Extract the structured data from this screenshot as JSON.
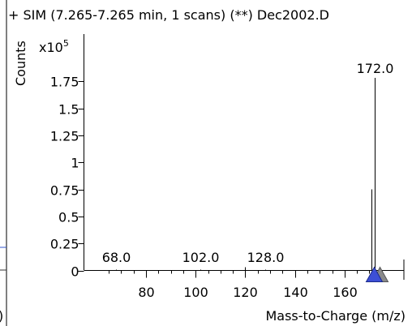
{
  "chart_data": {
    "type": "bar",
    "title": "+ SIM (7.265-7.265 min, 1 scans) (**) Dec2002.D",
    "ylabel": "Counts",
    "yscale_label": "x10",
    "yscale_exp": "5",
    "xlabel": "Mass-to-Charge (m/z)",
    "xlim": [
      60,
      178
    ],
    "ylim": [
      0,
      1.95
    ],
    "x_ticks": [
      80,
      100,
      120,
      140,
      160
    ],
    "y_ticks": [
      "0",
      "0.25",
      "0.5",
      "0.75",
      "1",
      "1.25",
      "1.5",
      "1.75"
    ],
    "y_tick_values": [
      0,
      0.25,
      0.5,
      0.75,
      1,
      1.25,
      1.5,
      1.75
    ],
    "series": [
      {
        "values": [
          {
            "x": 68.0,
            "y": 0.005,
            "label": "68.0"
          },
          {
            "x": 102.0,
            "y": 0.005,
            "label": "102.0"
          },
          {
            "x": 120.0,
            "y": 0.03
          },
          {
            "x": 128.0,
            "y": 0.005,
            "label": "128.0"
          },
          {
            "x": 171.0,
            "y": 0.75
          },
          {
            "x": 172.0,
            "y": 1.78,
            "label": "172.0"
          }
        ]
      }
    ],
    "marker": {
      "x": 172.0,
      "shape": "triangle",
      "color": "#3d4fd6"
    }
  }
}
